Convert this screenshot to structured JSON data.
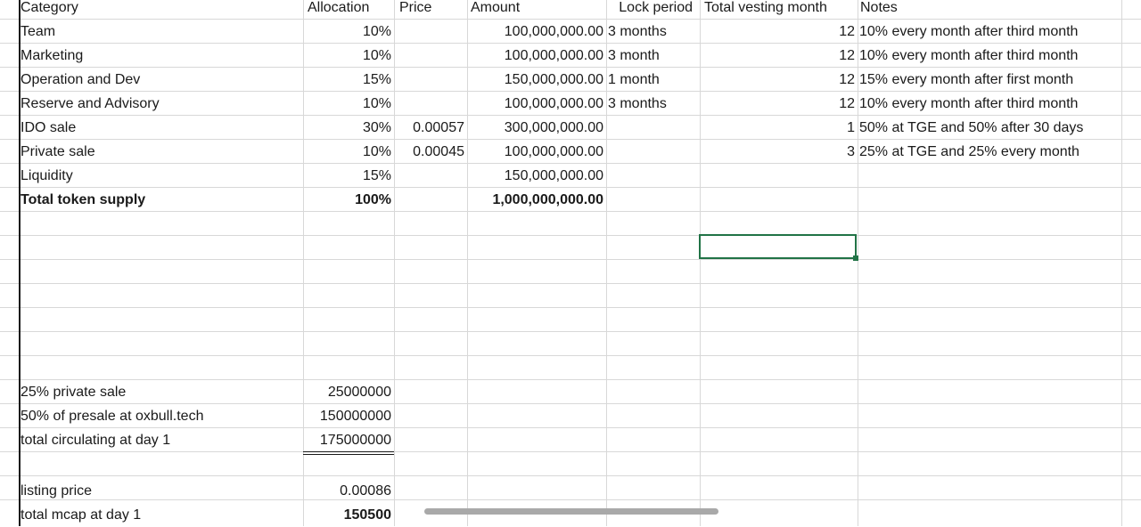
{
  "headers": {
    "category": "Category",
    "allocation": "Allocation",
    "price": "Price",
    "amount": "Amount",
    "lock_period": "Lock period",
    "total_vesting_month": "Total vesting month",
    "notes": "Notes"
  },
  "rows": [
    {
      "category": "Team",
      "allocation": "10%",
      "price": "",
      "amount": "100,000,000.00",
      "lock": "3 months",
      "vesting": "12",
      "notes": "10% every month after third month"
    },
    {
      "category": "Marketing",
      "allocation": "10%",
      "price": "",
      "amount": "100,000,000.00",
      "lock": "3 month",
      "vesting": "12",
      "notes": "10% every month after third month"
    },
    {
      "category": "Operation and Dev",
      "allocation": "15%",
      "price": "",
      "amount": "150,000,000.00",
      "lock": "1 month",
      "vesting": "12",
      "notes": "15% every month after first month"
    },
    {
      "category": "Reserve and Advisory",
      "allocation": "10%",
      "price": "",
      "amount": "100,000,000.00",
      "lock": "3 months",
      "vesting": "12",
      "notes": "10% every month after third month"
    },
    {
      "category": "IDO sale",
      "allocation": "30%",
      "price": "0.00057",
      "amount": "300,000,000.00",
      "lock": "",
      "vesting": "1",
      "notes": "50% at TGE and 50% after 30 days"
    },
    {
      "category": "Private sale",
      "allocation": "10%",
      "price": "0.00045",
      "amount": "100,000,000.00",
      "lock": "",
      "vesting": "3",
      "notes": "25% at TGE and 25% every month"
    },
    {
      "category": "Liquidity",
      "allocation": "15%",
      "price": "",
      "amount": "150,000,000.00",
      "lock": "",
      "vesting": "",
      "notes": ""
    }
  ],
  "total": {
    "category": "Total token supply",
    "allocation": "100%",
    "amount": "1,000,000,000.00"
  },
  "circulation": [
    {
      "label": "25% private sale",
      "value": "25000000"
    },
    {
      "label": "50% of presale at oxbull.tech",
      "value": "150000000"
    },
    {
      "label": "total circulating at day 1",
      "value": "175000000"
    }
  ],
  "listing": {
    "label": "listing price",
    "value": "0.00086"
  },
  "mcap": {
    "label": "total mcap at day 1",
    "value": "150500"
  }
}
